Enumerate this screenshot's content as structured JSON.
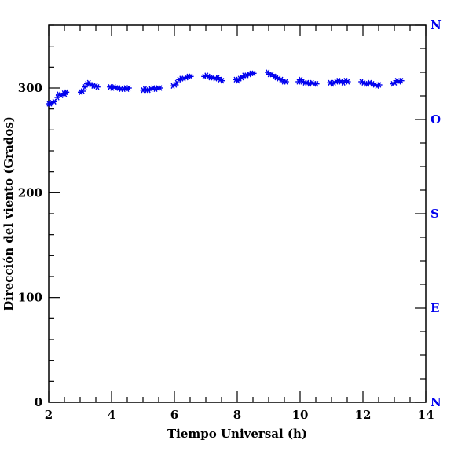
{
  "chart_data": {
    "type": "scatter",
    "title": "",
    "xlabel": "Tiempo Universal (h)",
    "ylabel": "Dirección del viento (Grados)",
    "xlim": [
      2,
      14
    ],
    "ylim": [
      0,
      360
    ],
    "x_ticks": [
      2,
      4,
      6,
      8,
      10,
      12,
      14
    ],
    "y_ticks": [
      0,
      100,
      200,
      300
    ],
    "right_axis_labels": [
      {
        "value": 0,
        "label": "N"
      },
      {
        "value": 90,
        "label": "E"
      },
      {
        "value": 180,
        "label": "S"
      },
      {
        "value": 270,
        "label": "O"
      },
      {
        "value": 360,
        "label": "N"
      }
    ],
    "marker": "asterisk",
    "marker_color": "#0000ee",
    "grid": false,
    "points": [
      [
        2.0,
        285
      ],
      [
        2.05,
        285
      ],
      [
        2.1,
        286
      ],
      [
        2.18,
        287
      ],
      [
        2.28,
        291
      ],
      [
        2.32,
        294
      ],
      [
        2.4,
        293
      ],
      [
        2.48,
        295
      ],
      [
        2.52,
        294
      ],
      [
        2.56,
        296
      ],
      [
        3.02,
        296
      ],
      [
        3.08,
        297
      ],
      [
        3.15,
        301
      ],
      [
        3.22,
        304
      ],
      [
        3.28,
        305
      ],
      [
        3.35,
        303
      ],
      [
        3.42,
        302
      ],
      [
        3.5,
        302
      ],
      [
        3.55,
        301
      ],
      [
        3.95,
        301
      ],
      [
        4.02,
        300
      ],
      [
        4.08,
        301
      ],
      [
        4.15,
        300
      ],
      [
        4.22,
        300
      ],
      [
        4.3,
        299
      ],
      [
        4.38,
        299
      ],
      [
        4.45,
        300
      ],
      [
        4.5,
        299
      ],
      [
        4.55,
        300
      ],
      [
        5.0,
        298
      ],
      [
        5.06,
        299
      ],
      [
        5.12,
        298
      ],
      [
        5.18,
        298
      ],
      [
        5.25,
        299
      ],
      [
        5.32,
        300
      ],
      [
        5.4,
        299
      ],
      [
        5.48,
        300
      ],
      [
        5.55,
        300
      ],
      [
        5.95,
        302
      ],
      [
        6.02,
        303
      ],
      [
        6.08,
        305
      ],
      [
        6.15,
        308
      ],
      [
        6.22,
        309
      ],
      [
        6.3,
        309
      ],
      [
        6.38,
        310
      ],
      [
        6.45,
        311
      ],
      [
        6.52,
        311
      ],
      [
        6.95,
        311
      ],
      [
        7.02,
        312
      ],
      [
        7.08,
        311
      ],
      [
        7.15,
        310
      ],
      [
        7.22,
        310
      ],
      [
        7.3,
        309
      ],
      [
        7.38,
        310
      ],
      [
        7.45,
        308
      ],
      [
        7.52,
        307
      ],
      [
        7.95,
        308
      ],
      [
        8.02,
        307
      ],
      [
        8.08,
        309
      ],
      [
        8.15,
        310
      ],
      [
        8.22,
        312
      ],
      [
        8.3,
        312
      ],
      [
        8.38,
        313
      ],
      [
        8.45,
        314
      ],
      [
        8.52,
        314
      ],
      [
        8.97,
        315
      ],
      [
        9.03,
        313
      ],
      [
        9.1,
        313
      ],
      [
        9.18,
        311
      ],
      [
        9.25,
        310
      ],
      [
        9.32,
        309
      ],
      [
        9.4,
        308
      ],
      [
        9.48,
        306
      ],
      [
        9.55,
        306
      ],
      [
        9.95,
        306
      ],
      [
        10.02,
        308
      ],
      [
        10.08,
        306
      ],
      [
        10.15,
        305
      ],
      [
        10.22,
        305
      ],
      [
        10.3,
        304
      ],
      [
        10.38,
        305
      ],
      [
        10.45,
        304
      ],
      [
        10.52,
        304
      ],
      [
        10.95,
        305
      ],
      [
        11.02,
        304
      ],
      [
        11.08,
        305
      ],
      [
        11.15,
        306
      ],
      [
        11.22,
        307
      ],
      [
        11.3,
        306
      ],
      [
        11.38,
        305
      ],
      [
        11.45,
        307
      ],
      [
        11.52,
        306
      ],
      [
        11.95,
        306
      ],
      [
        12.02,
        305
      ],
      [
        12.08,
        304
      ],
      [
        12.15,
        304
      ],
      [
        12.22,
        305
      ],
      [
        12.3,
        304
      ],
      [
        12.38,
        303
      ],
      [
        12.45,
        302
      ],
      [
        12.52,
        303
      ],
      [
        12.95,
        304
      ],
      [
        13.02,
        305
      ],
      [
        13.08,
        307
      ],
      [
        13.15,
        306
      ],
      [
        13.22,
        307
      ]
    ]
  }
}
